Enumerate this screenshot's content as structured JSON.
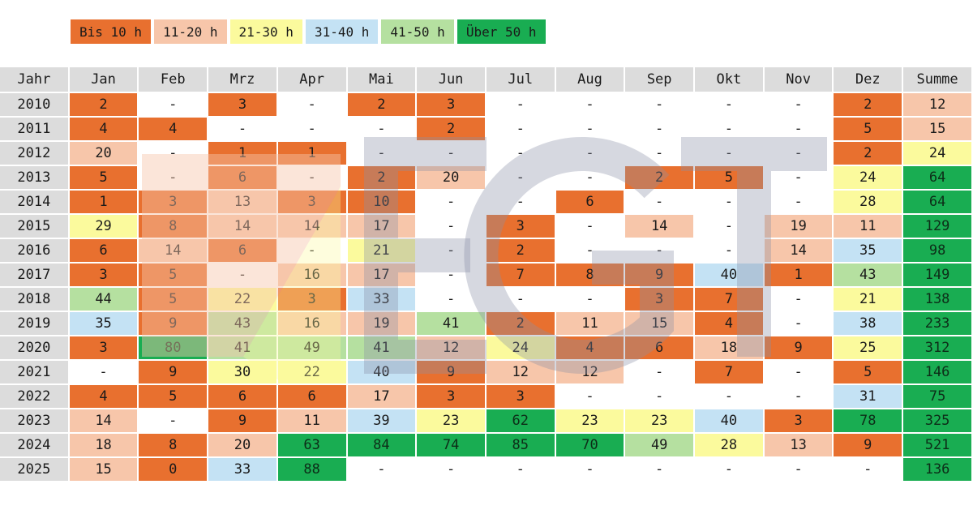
{
  "colors": {
    "bis10": "#e8702f",
    "r11_20": "#f7c6aa",
    "r21_30": "#fbfa9d",
    "r31_40": "#c4e2f4",
    "r41_50": "#b5e0a0",
    "ueber50": "#19ad52",
    "header": "#dcdcdc",
    "empty": "#ffffff"
  },
  "legend": [
    {
      "label": "Bis 10 h",
      "color": "#e8702f"
    },
    {
      "label": "11-20 h",
      "color": "#f7c6aa"
    },
    {
      "label": "21-30 h",
      "color": "#fbfa9d"
    },
    {
      "label": "31-40 h",
      "color": "#c4e2f4"
    },
    {
      "label": "41-50 h",
      "color": "#b5e0a0"
    },
    {
      "label": "Über 50 h",
      "color": "#19ad52"
    }
  ],
  "chart_data": {
    "type": "heatmap",
    "columns": [
      "Jahr",
      "Jan",
      "Feb",
      "Mrz",
      "Apr",
      "Mai",
      "Jun",
      "Jul",
      "Aug",
      "Sep",
      "Okt",
      "Nov",
      "Dez",
      "Summe"
    ],
    "rows": [
      {
        "year": "2010",
        "values": [
          "2",
          "-",
          "3",
          "-",
          "2",
          "3",
          "-",
          "-",
          "-",
          "-",
          "-",
          "2"
        ],
        "total": "12"
      },
      {
        "year": "2011",
        "values": [
          "4",
          "4",
          "-",
          "-",
          "-",
          "2",
          "-",
          "-",
          "-",
          "-",
          "-",
          "5"
        ],
        "total": "15"
      },
      {
        "year": "2012",
        "values": [
          "20",
          "-",
          "1",
          "1",
          "-",
          "-",
          "-",
          "-",
          "-",
          "-",
          "-",
          "2"
        ],
        "total": "24"
      },
      {
        "year": "2013",
        "values": [
          "5",
          "-",
          "6",
          "-",
          "2",
          "20",
          "-",
          "-",
          "2",
          "5",
          "-",
          "24"
        ],
        "total": "64"
      },
      {
        "year": "2014",
        "values": [
          "1",
          "3",
          "13",
          "3",
          "10",
          "-",
          "-",
          "6",
          "-",
          "-",
          "-",
          "28"
        ],
        "total": "64"
      },
      {
        "year": "2015",
        "values": [
          "29",
          "8",
          "14",
          "14",
          "17",
          "-",
          "3",
          "-",
          "14",
          "-",
          "19",
          "11"
        ],
        "total": "129"
      },
      {
        "year": "2016",
        "values": [
          "6",
          "14",
          "6",
          "-",
          "21",
          "-",
          "2",
          "-",
          "-",
          "-",
          "14",
          "35"
        ],
        "total": "98"
      },
      {
        "year": "2017",
        "values": [
          "3",
          "5",
          "-",
          "16",
          "17",
          "-",
          "7",
          "8",
          "9",
          "40",
          "1",
          "43"
        ],
        "total": "149"
      },
      {
        "year": "2018",
        "values": [
          "44",
          "5",
          "22",
          "3",
          "33",
          "-",
          "-",
          "-",
          "3",
          "7",
          "-",
          "21"
        ],
        "total": "138"
      },
      {
        "year": "2019",
        "values": [
          "35",
          "9",
          "43",
          "16",
          "19",
          "41",
          "2",
          "11",
          "15",
          "4",
          "-",
          "38"
        ],
        "total": "233"
      },
      {
        "year": "2020",
        "values": [
          "3",
          "80",
          "41",
          "49",
          "41",
          "12",
          "24",
          "4",
          "6",
          "18",
          "9",
          "25"
        ],
        "total": "312"
      },
      {
        "year": "2021",
        "values": [
          "-",
          "9",
          "30",
          "22",
          "40",
          "9",
          "12",
          "12",
          "-",
          "7",
          "-",
          "5"
        ],
        "total": "146"
      },
      {
        "year": "2022",
        "values": [
          "4",
          "5",
          "6",
          "6",
          "17",
          "3",
          "3",
          "-",
          "-",
          "-",
          "-",
          "31"
        ],
        "total": "75"
      },
      {
        "year": "2023",
        "values": [
          "14",
          "-",
          "9",
          "11",
          "39",
          "23",
          "62",
          "23",
          "23",
          "40",
          "3",
          "78"
        ],
        "total": "325"
      },
      {
        "year": "2024",
        "values": [
          "18",
          "8",
          "20",
          "63",
          "84",
          "74",
          "85",
          "70",
          "49",
          "28",
          "13",
          "9"
        ],
        "total": "521"
      },
      {
        "year": "2025",
        "values": [
          "15",
          "0",
          "33",
          "88",
          "-",
          "-",
          "-",
          "-",
          "-",
          "-",
          "-",
          "-"
        ],
        "total": "136"
      }
    ]
  }
}
